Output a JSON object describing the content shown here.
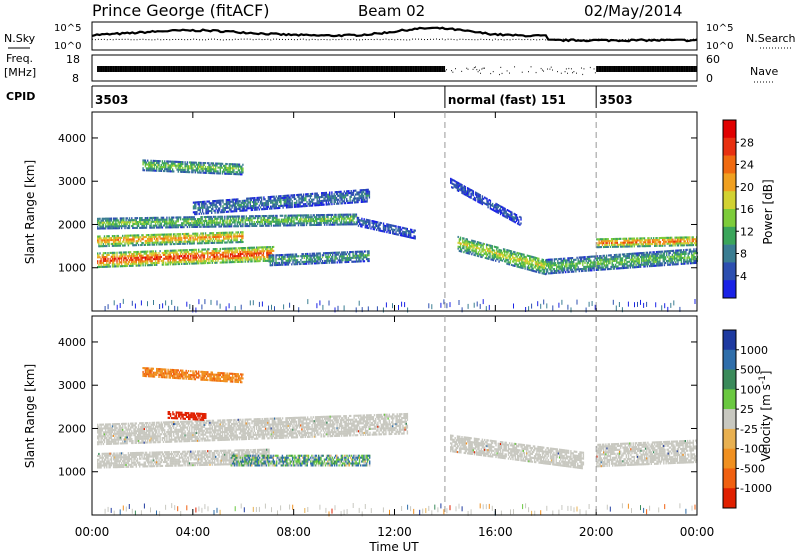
{
  "header": {
    "station": "Prince George (fitACF)",
    "beam": "Beam 02",
    "date": "02/May/2014"
  },
  "noise_panel": {
    "left_label": "N.Sky",
    "right_label": "N.Search",
    "left_ticks": [
      "10^5",
      "10^0"
    ],
    "right_ticks": [
      "10^5",
      "10^0"
    ]
  },
  "freq_panel": {
    "left_label_top": "Freq.",
    "left_label_bottom": "[MHz]",
    "right_label": "Nave",
    "left_ticks": [
      "18",
      "8"
    ],
    "right_ticks": [
      "60",
      "0"
    ]
  },
  "cpid_panel": {
    "label": "CPID",
    "segments": [
      {
        "start_hour": 0,
        "end_hour": 14,
        "label": "3503"
      },
      {
        "start_hour": 14,
        "end_hour": 20,
        "label": "normal (fast) 151"
      },
      {
        "start_hour": 20,
        "end_hour": 24,
        "label": "3503"
      }
    ]
  },
  "chart_data": [
    {
      "type": "heatmap",
      "title": "",
      "xlabel": "",
      "ylabel": "Slant Range [km]",
      "x_range_hours": [
        0,
        24
      ],
      "ylim": [
        0,
        4600
      ],
      "yticks": [
        1000,
        2000,
        3000,
        4000
      ],
      "mode_change_hours": [
        14,
        20
      ],
      "colorbar": {
        "label": "Power [dB]",
        "ticks": [
          "4",
          "8",
          "12",
          "16",
          "20",
          "24",
          "28"
        ],
        "colors": [
          "#1a22e6",
          "#2d4fb0",
          "#3a7d92",
          "#3aa55a",
          "#7dcc3a",
          "#d2d232",
          "#f0a020",
          "#f06a10",
          "#e83010",
          "#e00000"
        ],
        "range": [
          0,
          30
        ]
      },
      "bands": [
        {
          "start": 0.2,
          "end": 7.2,
          "r0": 1200,
          "r1": 1350,
          "dr": 160,
          "level": 27
        },
        {
          "start": 0.2,
          "end": 6.0,
          "r0": 1650,
          "r1": 1750,
          "dr": 130,
          "level": 22
        },
        {
          "start": 0.2,
          "end": 10.5,
          "r0": 2050,
          "r1": 2150,
          "dr": 120,
          "level": 14
        },
        {
          "start": 4.0,
          "end": 11.0,
          "r0": 2400,
          "r1": 2700,
          "dr": 140,
          "level": 8
        },
        {
          "start": 7.0,
          "end": 11.0,
          "r0": 1200,
          "r1": 1300,
          "dr": 120,
          "level": 11
        },
        {
          "start": 2.0,
          "end": 6.0,
          "r0": 3400,
          "r1": 3300,
          "dr": 120,
          "level": 14
        },
        {
          "start": 10.5,
          "end": 12.8,
          "r0": 2100,
          "r1": 1800,
          "dr": 100,
          "level": 6
        },
        {
          "start": 14.5,
          "end": 18.0,
          "r0": 1600,
          "r1": 1050,
          "dr": 180,
          "level": 17
        },
        {
          "start": 18.0,
          "end": 24.0,
          "r0": 1050,
          "r1": 1300,
          "dr": 160,
          "level": 13
        },
        {
          "start": 20.0,
          "end": 24.0,
          "r0": 1600,
          "r1": 1650,
          "dr": 100,
          "level": 24
        },
        {
          "start": 14.2,
          "end": 17.0,
          "r0": 3000,
          "r1": 2100,
          "dr": 100,
          "level": 5
        }
      ]
    },
    {
      "type": "heatmap",
      "title": "",
      "xlabel": "Time UT",
      "ylabel": "Slant Range [km]",
      "x_range_hours": [
        0,
        24
      ],
      "ylim": [
        0,
        4600
      ],
      "yticks": [
        1000,
        2000,
        3000,
        4000
      ],
      "xticks": [
        "00:00",
        "04:00",
        "08:00",
        "12:00",
        "16:00",
        "20:00",
        "00:00"
      ],
      "mode_change_hours": [
        14,
        20
      ],
      "colorbar": {
        "label": "Velocity [m s^-1]",
        "ticks": [
          "1000",
          "500",
          "100",
          "25",
          "-25",
          "-100",
          "-500",
          "-1000"
        ],
        "colors": [
          "#1e3aa0",
          "#2f6eaa",
          "#3a8a5a",
          "#6ac840",
          "#c8c8c0",
          "#e8b050",
          "#f09020",
          "#f06010",
          "#e02000"
        ],
        "range": [
          -1000,
          1000
        ]
      },
      "groundscatter_color": "#c8c8c0",
      "bands": [
        {
          "start": 0.2,
          "end": 12.5,
          "r0": 1900,
          "r1": 2150,
          "dr": 240,
          "vel": 0
        },
        {
          "start": 0.2,
          "end": 7.0,
          "r0": 1300,
          "r1": 1400,
          "dr": 180,
          "vel": 0
        },
        {
          "start": 14.2,
          "end": 19.5,
          "r0": 1700,
          "r1": 1300,
          "dr": 200,
          "vel": 0
        },
        {
          "start": 20.0,
          "end": 24.0,
          "r0": 1400,
          "r1": 1500,
          "dr": 250,
          "vel": 0
        },
        {
          "start": 5.5,
          "end": 11.0,
          "r0": 1300,
          "r1": 1300,
          "dr": 130,
          "vel": 90
        },
        {
          "start": 2.0,
          "end": 6.0,
          "r0": 3350,
          "r1": 3200,
          "dr": 110,
          "vel": -300
        },
        {
          "start": 3.0,
          "end": 4.5,
          "r0": 2350,
          "r1": 2300,
          "dr": 80,
          "vel": -600
        }
      ]
    }
  ]
}
